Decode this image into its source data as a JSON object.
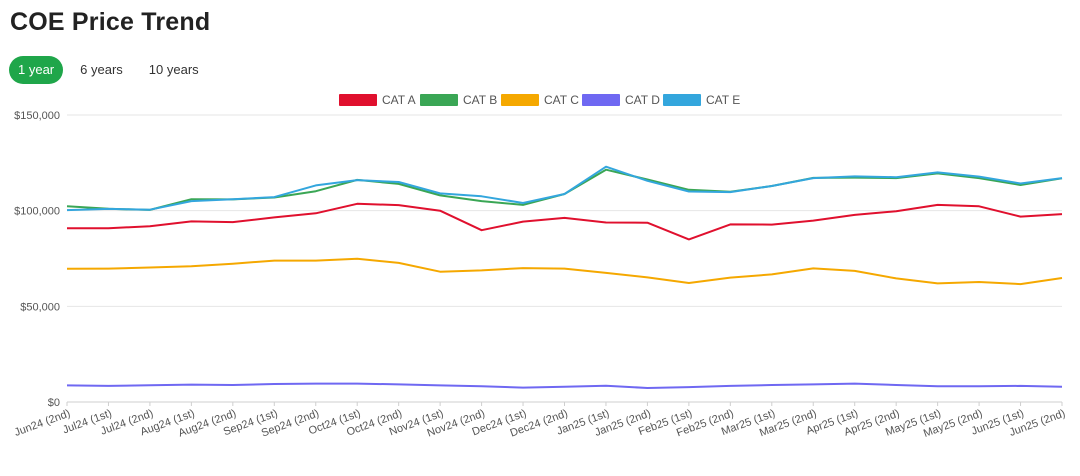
{
  "page_title": "COE Price Trend",
  "tabs": [
    {
      "label": "1 year",
      "active": true
    },
    {
      "label": "6 years",
      "active": false
    },
    {
      "label": "10 years",
      "active": false
    }
  ],
  "chart_data": {
    "type": "line",
    "title": "",
    "xlabel": "",
    "ylabel": "",
    "ylim": [
      0,
      150000
    ],
    "yticks": [
      {
        "value": 0,
        "label": "$0"
      },
      {
        "value": 50000,
        "label": "$50,000"
      },
      {
        "value": 100000,
        "label": "$100,000"
      },
      {
        "value": 150000,
        "label": "$150,000"
      }
    ],
    "grid": true,
    "legend_position": "top-center",
    "categories": [
      "Jun24 (2nd)",
      "Jul24 (1st)",
      "Jul24 (2nd)",
      "Aug24 (1st)",
      "Aug24 (2nd)",
      "Sep24 (1st)",
      "Sep24 (2nd)",
      "Oct24 (1st)",
      "Oct24 (2nd)",
      "Nov24 (1st)",
      "Nov24 (2nd)",
      "Dec24 (1st)",
      "Dec24 (2nd)",
      "Jan25 (1st)",
      "Jan25 (2nd)",
      "Feb25 (1st)",
      "Feb25 (2nd)",
      "Mar25 (1st)",
      "Mar25 (2nd)",
      "Apr25 (1st)",
      "Apr25 (2nd)",
      "May25 (1st)",
      "May25 (2nd)",
      "Jun25 (1st)",
      "Jun25 (2nd)"
    ],
    "series": [
      {
        "name": "CAT A",
        "color": "#e0102e",
        "values": [
          90800,
          90800,
          91900,
          94400,
          94000,
          96500,
          98600,
          103600,
          102900,
          100000,
          89800,
          94300,
          96200,
          93800,
          93700,
          85000,
          92800,
          92700,
          94800,
          97800,
          99700,
          103000,
          102300,
          96900,
          98200
        ]
      },
      {
        "name": "CAT B",
        "color": "#3aa655",
        "values": [
          102300,
          101000,
          100400,
          106000,
          105900,
          106900,
          110200,
          116100,
          114000,
          108000,
          105000,
          103000,
          108700,
          121400,
          116300,
          110900,
          109900,
          112900,
          117100,
          117300,
          117000,
          119500,
          117000,
          113400,
          116900
        ]
      },
      {
        "name": "CAT C",
        "color": "#f5a800",
        "values": [
          69600,
          69700,
          70300,
          70900,
          72300,
          73900,
          73900,
          74900,
          72700,
          68100,
          68800,
          70000,
          69700,
          67500,
          65100,
          62200,
          65000,
          66700,
          69800,
          68500,
          64600,
          62000,
          62700,
          61600,
          64800
        ]
      },
      {
        "name": "CAT D",
        "color": "#6f68f2",
        "values": [
          8700,
          8400,
          8800,
          9100,
          8900,
          9400,
          9600,
          9600,
          9200,
          8700,
          8200,
          7500,
          8000,
          8500,
          7300,
          7800,
          8400,
          8900,
          9200,
          9600,
          8900,
          8200,
          8200,
          8400,
          8000
        ]
      },
      {
        "name": "CAT E",
        "color": "#33a6dd",
        "values": [
          100300,
          100900,
          100500,
          105000,
          106000,
          107100,
          113200,
          116000,
          115000,
          109000,
          107500,
          104000,
          108700,
          123000,
          115600,
          110000,
          109700,
          112900,
          117000,
          117900,
          117500,
          120000,
          117800,
          114200,
          117000
        ]
      }
    ]
  }
}
